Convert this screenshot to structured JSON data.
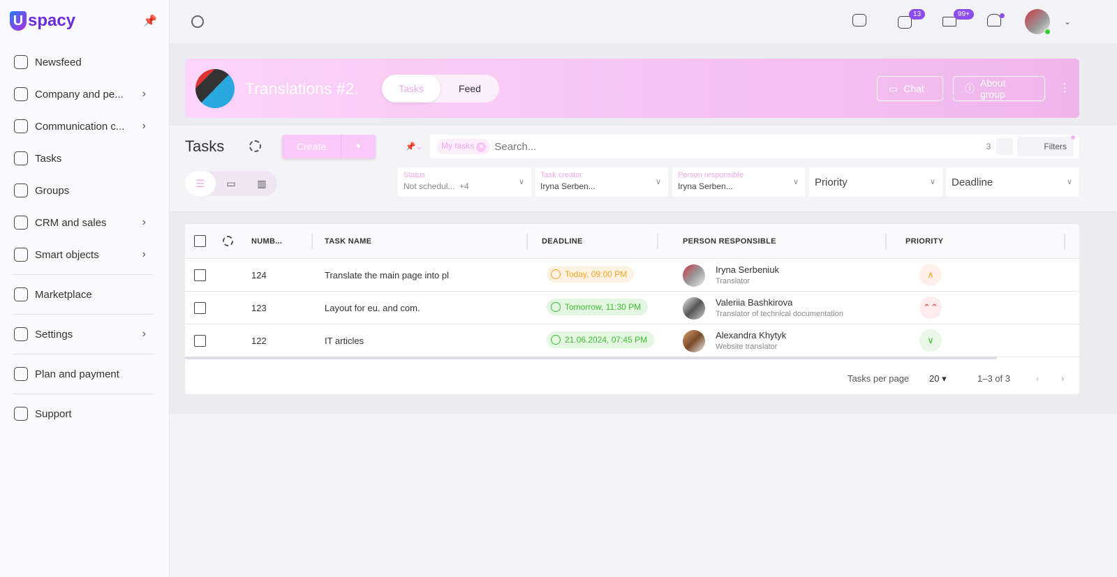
{
  "app": {
    "logo": "spacy",
    "logo_letter": "U"
  },
  "sidebar": {
    "items": [
      {
        "label": "Newsfeed",
        "chev": false
      },
      {
        "label": "Company and pe...",
        "chev": true
      },
      {
        "label": "Communication c...",
        "chev": true
      },
      {
        "label": "Tasks",
        "chev": false
      },
      {
        "label": "Groups",
        "chev": false
      },
      {
        "label": "CRM and sales",
        "chev": true
      },
      {
        "label": "Smart objects",
        "chev": true
      },
      {
        "label": "Marketplace",
        "chev": false
      },
      {
        "label": "Settings",
        "chev": true
      },
      {
        "label": "Plan and payment",
        "chev": false
      },
      {
        "label": "Support",
        "chev": false
      }
    ]
  },
  "topbar": {
    "chat_badge": "13",
    "mail_badge": "99+"
  },
  "group": {
    "title": "Translations #2.",
    "tabs": [
      "Tasks",
      "Feed"
    ],
    "chat": "Chat",
    "about": "About group"
  },
  "tasks": {
    "title": "Tasks",
    "create": "Create",
    "chip": "My tasks",
    "search_placeholder": "Search...",
    "count": "3",
    "filters": "Filters",
    "filter_status_label": "Status",
    "filter_status_value": "Not schedul...",
    "filter_status_more": "+4",
    "filter_creator_label": "Task creator",
    "filter_creator_value": "Iryna Serben...",
    "filter_resp_label": "Person responsible",
    "filter_resp_value": "Iryna Serben...",
    "filter_priority": "Priority",
    "filter_deadline": "Deadline"
  },
  "table": {
    "headers": [
      "NUMB...",
      "TASK NAME",
      "DEADLINE",
      "PERSON RESPONSIBLE",
      "PRIORITY"
    ],
    "rows": [
      {
        "number": "124",
        "name": "Translate the main page into pl",
        "deadline": "Today, 09:00 PM",
        "deadline_color": "#f5a623",
        "person": "Iryna Serbeniuk",
        "role": "Translator",
        "priority": "high"
      },
      {
        "number": "123",
        "name": "Layout for eu. and com.",
        "deadline": "Tomorrow, 11:30 PM",
        "deadline_color": "#3cbf2e",
        "person": "Valeriia Bashkirova",
        "role": "Translator of technical documentation",
        "priority": "critical"
      },
      {
        "number": "122",
        "name": "IT articles",
        "deadline": "21.06.2024, 07:45 PM",
        "deadline_color": "#3cbf2e",
        "person": "Alexandra Khytyk",
        "role": "Website translator",
        "priority": "low"
      }
    ],
    "per_page_label": "Tasks per page",
    "per_page": "20",
    "range": "1–3 of 3"
  },
  "colors": {
    "accent": "#f0a8ee",
    "brand": "#6b2bd9"
  }
}
